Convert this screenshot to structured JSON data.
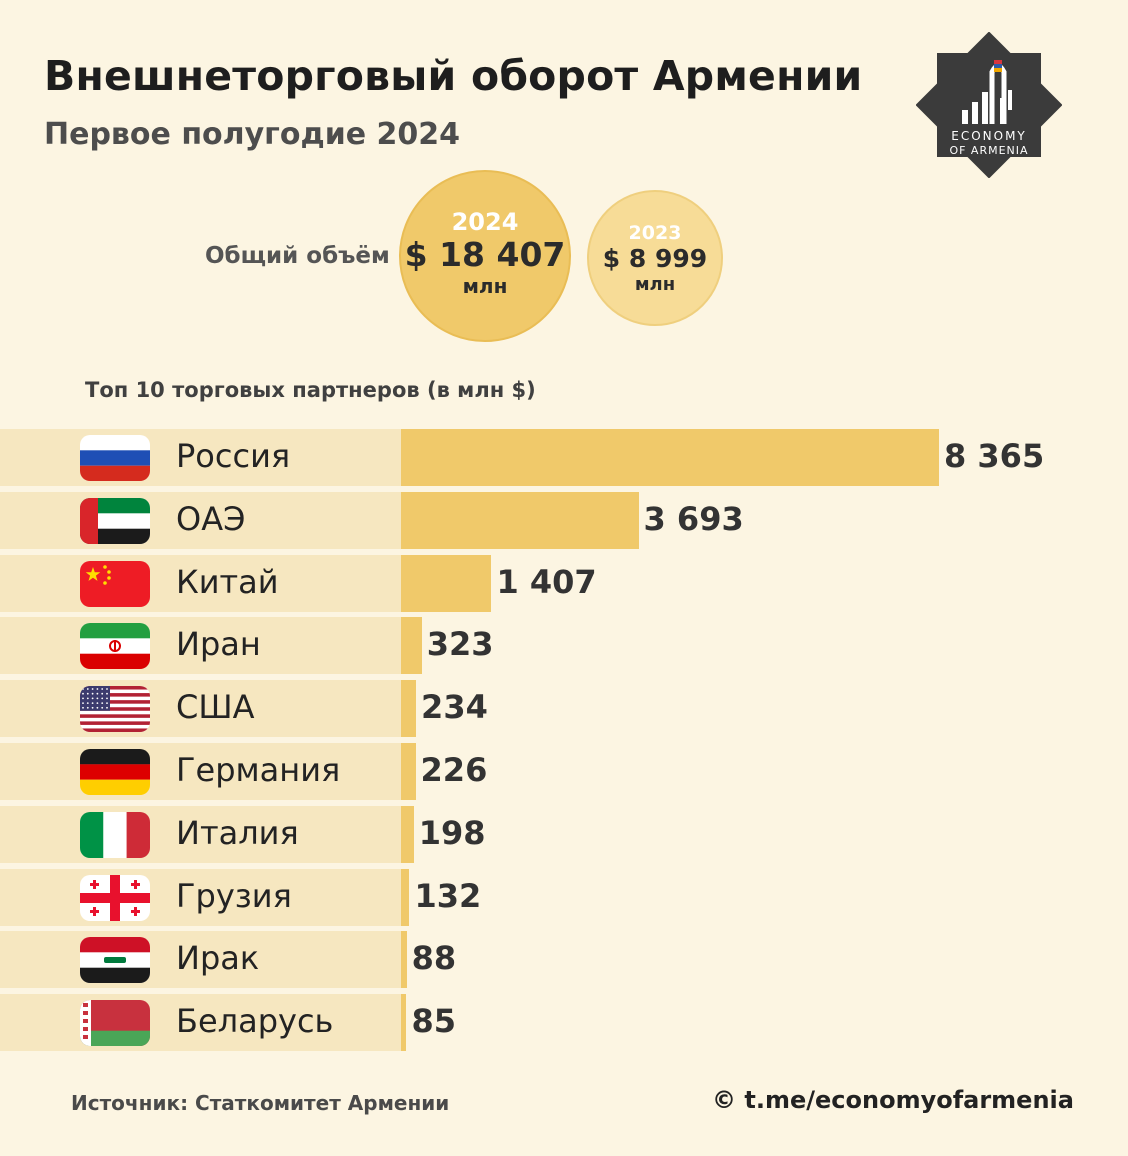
{
  "header": {
    "title": "Внешнеторговый оборот Армении",
    "subtitle": "Первое полугодие 2024"
  },
  "logo": {
    "icon": "economy-of-armenia-logo-icon",
    "line1": "ECONOMY",
    "line2": "OF ARMENIA",
    "color": "#3b3b3b"
  },
  "total": {
    "label": "Общий объём",
    "current": {
      "year": "2024",
      "value": "$ 18 407",
      "unit": "млн",
      "color": "#f0c96a"
    },
    "previous": {
      "year": "2023",
      "value": "$ 8 999",
      "unit": "млн",
      "color": "#f7dc97"
    }
  },
  "chart_data": {
    "type": "bar",
    "title": "Топ 10 торговых партнеров (в млн $)",
    "orientation": "horizontal",
    "categories": [
      "Россия",
      "ОАЭ",
      "Китай",
      "Иран",
      "США",
      "Германия",
      "Италия",
      "Грузия",
      "Ирак",
      "Беларусь"
    ],
    "values": [
      8365,
      3693,
      1407,
      323,
      234,
      226,
      198,
      132,
      88,
      85
    ],
    "value_labels": [
      "8 365",
      "3 693",
      "1 407",
      "323",
      "234",
      "226",
      "198",
      "132",
      "88",
      "85"
    ],
    "flags": [
      "russia-flag-icon",
      "uae-flag-icon",
      "china-flag-icon",
      "iran-flag-icon",
      "usa-flag-icon",
      "germany-flag-icon",
      "italy-flag-icon",
      "georgia-flag-icon",
      "iraq-flag-icon",
      "belarus-flag-icon"
    ],
    "bar_color": "#f0c96a",
    "row_color": "#f6e7c0",
    "xlim": [
      0,
      8365
    ]
  },
  "footer": {
    "source": "Источник: Статкомитет Армении",
    "credit": "© t.me/economyofarmenia"
  }
}
